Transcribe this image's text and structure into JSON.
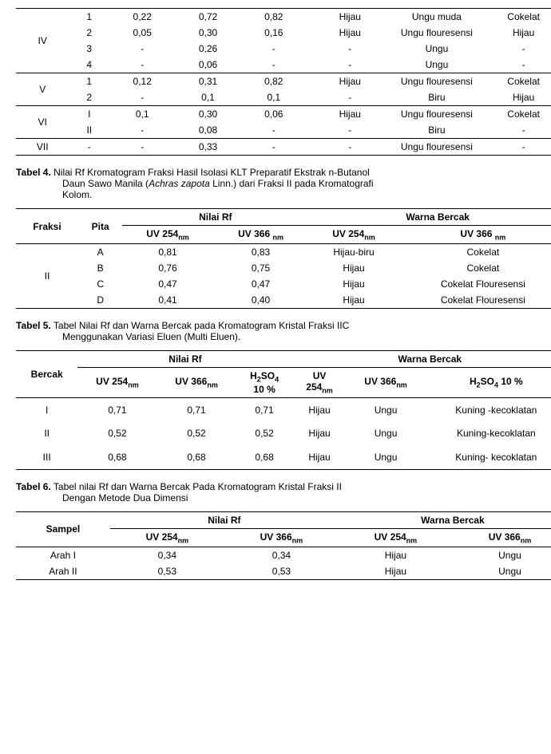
{
  "table3": {
    "groups": [
      {
        "label": "IV",
        "rows": [
          {
            "n": "1",
            "rf1": "0,22",
            "rf2": "0,72",
            "rf3": "0,82",
            "w1": "Hijau",
            "w2": "Ungu muda",
            "w3": "Cokelat"
          },
          {
            "n": "2",
            "rf1": "0,05",
            "rf2": "0,30",
            "rf3": "0,16",
            "w1": "Hijau",
            "w2": "Ungu flouresensi",
            "w3": "Hijau"
          },
          {
            "n": "3",
            "rf1": "-",
            "rf2": "0,26",
            "rf3": "-",
            "w1": "-",
            "w2": "Ungu",
            "w3": "-"
          },
          {
            "n": "4",
            "rf1": "-",
            "rf2": "0,06",
            "rf3": "-",
            "w1": "-",
            "w2": "Ungu",
            "w3": "-"
          }
        ]
      },
      {
        "label": "V",
        "rows": [
          {
            "n": "1",
            "rf1": "0,12",
            "rf2": "0,31",
            "rf3": "0,82",
            "w1": "Hijau",
            "w2": "Ungu flouresensi",
            "w3": "Cokelat"
          },
          {
            "n": "2",
            "rf1": "-",
            "rf2": "0,1",
            "rf3": "0,1",
            "w1": "-",
            "w2": "Biru",
            "w3": "Hijau"
          }
        ]
      },
      {
        "label": "VI",
        "rows": [
          {
            "n": "I",
            "rf1": "0,1",
            "rf2": "0,30",
            "rf3": "0,06",
            "w1": "Hijau",
            "w2": "Ungu flouresensi",
            "w3": "Cokelat"
          },
          {
            "n": "II",
            "rf1": "-",
            "rf2": "0,08",
            "rf3": "-",
            "w1": "-",
            "w2": "Biru",
            "w3": "-"
          }
        ]
      },
      {
        "label": "VII",
        "rows": [
          {
            "n": "-",
            "rf1": "-",
            "rf2": "0,33",
            "rf3": "-",
            "w1": "-",
            "w2": "Ungu flouresensi",
            "w3": "-"
          }
        ]
      }
    ]
  },
  "caption4": {
    "bold": "Tabel 4.",
    "text1": " Nilai Rf Kromatogram Fraksi Hasil Isolasi KLT Preparatif Ekstrak n-Butanol",
    "text2": "Daun Sawo Manila (",
    "italic": "Achras zapota",
    "text3": " Linn.) dari Fraksi II pada Kromatografi",
    "text4": "Kolom."
  },
  "table4": {
    "h_fraksi": "Fraksi",
    "h_pita": "Pita",
    "h_rf": "Nilai Rf",
    "h_warna": "Warna Bercak",
    "h_uv254": "UV 254",
    "h_uv366": "UV 366 ",
    "h_uv254b": "UV 254",
    "h_uv366b": "UV 366 ",
    "nm": "nm",
    "group": "II",
    "rows": [
      {
        "p": "A",
        "r1": "0,81",
        "r2": "0,83",
        "w1": "Hijau-biru",
        "w2": "Cokelat"
      },
      {
        "p": "B",
        "r1": "0,76",
        "r2": "0,75",
        "w1": "Hijau",
        "w2": "Cokelat"
      },
      {
        "p": "C",
        "r1": "0,47",
        "r2": "0,47",
        "w1": "Hijau",
        "w2": "Cokelat Flouresensi"
      },
      {
        "p": "D",
        "r1": "0,41",
        "r2": "0,40",
        "w1": "Hijau",
        "w2": "Cokelat Flouresensi"
      }
    ]
  },
  "caption5": {
    "bold": "Tabel 5.",
    "text1": " Tabel Nilai Rf dan Warna Bercak pada Kromatogram Kristal Fraksi IIC",
    "text2": "Menggunakan Variasi Eluen (Multi Eluen)."
  },
  "table5": {
    "h_bercak": "Bercak",
    "h_rf": "Nilai Rf",
    "h_warna": "Warna Bercak",
    "h_uv254": "UV 254",
    "h_uv366": "UV 366",
    "h_h2so4": "H",
    "h2so4_sub": "2",
    "h_so4": "SO",
    "so4_sub": "4",
    "h_10": "10 %",
    "h_uv254b": "UV",
    "h_254": "254",
    "h_uv366b": "UV 366",
    "h_h2so4b": "H",
    "h_10b": " 10 %",
    "nm": "nm",
    "rows": [
      {
        "b": "I",
        "r1": "0,71",
        "r2": "0,71",
        "r3": "0,71",
        "w1": "Hijau",
        "w2": "Ungu",
        "w3": "Kuning -kecoklatan"
      },
      {
        "b": "II",
        "r1": "0,52",
        "r2": "0,52",
        "r3": "0,52",
        "w1": "Hijau",
        "w2": "Ungu",
        "w3": "Kuning-kecoklatan"
      },
      {
        "b": "III",
        "r1": "0,68",
        "r2": "0,68",
        "r3": "0,68",
        "w1": "Hijau",
        "w2": "Ungu",
        "w3": "Kuning- kecoklatan"
      }
    ]
  },
  "caption6": {
    "bold": "Tabel 6.",
    "text1": " Tabel nilai Rf dan Warna Bercak Pada Kromatogram Kristal Fraksi II",
    "text2": "Dengan Metode Dua Dimensi"
  },
  "table6": {
    "h_sampel": "Sampel",
    "h_rf": "Nilai Rf",
    "h_warna": "Warna Bercak",
    "h_uv254": "UV 254",
    "h_uv366": "UV 366",
    "nm": "nm",
    "rows": [
      {
        "s": "Arah I",
        "r1": "0,34",
        "r2": "0,34",
        "w1": "Hijau",
        "w2": "Ungu"
      },
      {
        "s": "Arah II",
        "r1": "0,53",
        "r2": "0,53",
        "w1": "Hijau",
        "w2": "Ungu"
      }
    ]
  }
}
